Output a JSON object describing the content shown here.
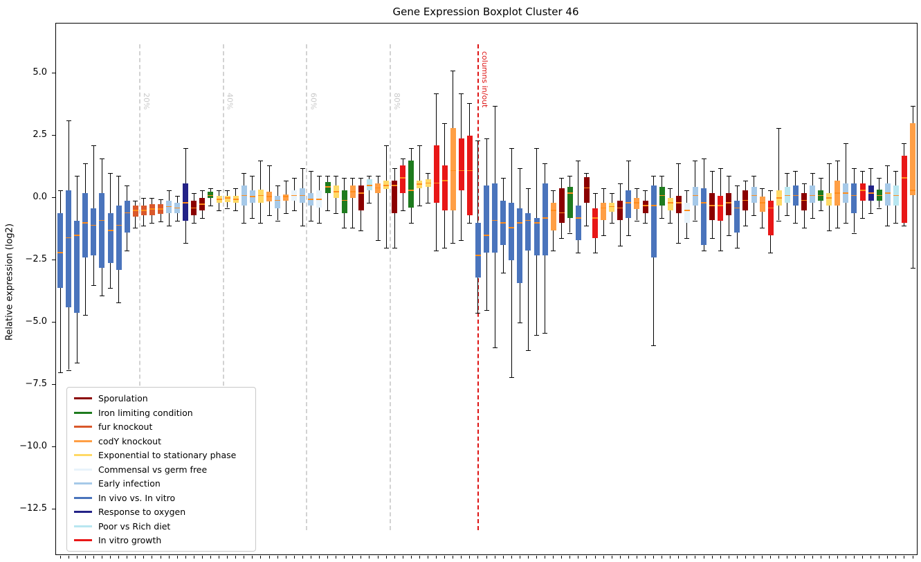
{
  "title": "Gene Expression Boxplot Cluster 46",
  "y_axis": {
    "label": "Relative expression (log2)",
    "ticks": [
      {
        "v": 5.0,
        "label": "5.0"
      },
      {
        "v": 2.5,
        "label": "2.5"
      },
      {
        "v": 0.0,
        "label": "0.0"
      },
      {
        "v": -2.5,
        "label": "−2.5"
      },
      {
        "v": -5.0,
        "label": "−5.0"
      },
      {
        "v": -7.5,
        "label": "−7.5"
      },
      {
        "v": -10.0,
        "label": "−10.0"
      },
      {
        "v": -12.5,
        "label": "−12.5"
      }
    ]
  },
  "chart_data": {
    "type": "boxplot",
    "title": "Gene Expression Boxplot Cluster 46",
    "xlabel": "",
    "ylabel": "Relative expression (log2)",
    "ylim": [
      -14.3,
      7.0
    ],
    "grid": false,
    "legend_position": "lower-left",
    "colors": {
      "percent_line": "#d2d2d2",
      "percent_label": "#c9c9c9",
      "boundary_line": "#dd1111",
      "boundary_label": "#dd1111",
      "median": "#ff8c1a",
      "whisker": "#000000"
    },
    "groups": [
      {
        "key": "spor",
        "label": "Sporulation",
        "color": "#8b0000"
      },
      {
        "key": "iron",
        "label": "Iron limiting condition",
        "color": "#1e7b1e"
      },
      {
        "key": "fur",
        "label": "fur knockout",
        "color": "#d9582b"
      },
      {
        "key": "cody",
        "label": "codY knockout",
        "color": "#ff9f45"
      },
      {
        "key": "exp",
        "label": "Exponential to stationary phase",
        "color": "#ffd966"
      },
      {
        "key": "comm",
        "label": "Commensal vs germ free",
        "color": "#e8f3fb"
      },
      {
        "key": "early",
        "label": "Early infection",
        "color": "#a6c9e8"
      },
      {
        "key": "invivo",
        "label": "In vivo vs. In vitro",
        "color": "#4a74bc"
      },
      {
        "key": "oxy",
        "label": "Response to oxygen",
        "color": "#232287"
      },
      {
        "key": "diet",
        "label": "Poor vs Rich diet",
        "color": "#b8e6f0"
      },
      {
        "key": "vitro",
        "label": "In vitro growth",
        "color": "#e81717"
      }
    ],
    "vlines": [
      {
        "label": "20%",
        "at_box": 10,
        "kind": "percent"
      },
      {
        "label": "40%",
        "at_box": 20,
        "kind": "percent"
      },
      {
        "label": "60%",
        "at_box": 30,
        "kind": "percent"
      },
      {
        "label": "80%",
        "at_box": 40,
        "kind": "percent"
      },
      {
        "label": "columns in/out",
        "at_box": 50.5,
        "kind": "boundary"
      }
    ],
    "boxes": [
      {
        "g": "invivo",
        "lo": -7.0,
        "q1": -3.6,
        "m": -2.2,
        "q3": -0.6,
        "hi": 0.3
      },
      {
        "g": "invivo",
        "lo": -6.9,
        "q1": -4.4,
        "m": -1.6,
        "q3": 0.3,
        "hi": 3.1
      },
      {
        "g": "invivo",
        "lo": -6.6,
        "q1": -4.6,
        "m": -1.5,
        "q3": -0.9,
        "hi": 0.9
      },
      {
        "g": "invivo",
        "lo": -4.7,
        "q1": -2.4,
        "m": -1.0,
        "q3": 0.2,
        "hi": 1.4
      },
      {
        "g": "invivo",
        "lo": -3.5,
        "q1": -2.3,
        "m": -1.1,
        "q3": -0.4,
        "hi": 2.1
      },
      {
        "g": "invivo",
        "lo": -3.9,
        "q1": -2.8,
        "m": -0.9,
        "q3": 0.2,
        "hi": 1.6
      },
      {
        "g": "invivo",
        "lo": -3.6,
        "q1": -2.6,
        "m": -1.3,
        "q3": -0.6,
        "hi": 1.0
      },
      {
        "g": "invivo",
        "lo": -4.2,
        "q1": -2.9,
        "m": -1.1,
        "q3": -0.3,
        "hi": 0.9
      },
      {
        "g": "invivo",
        "lo": -2.1,
        "q1": -1.4,
        "m": -0.6,
        "q3": -0.1,
        "hi": 0.5
      },
      {
        "g": "fur",
        "lo": -1.2,
        "q1": -0.75,
        "m": -0.5,
        "q3": -0.3,
        "hi": -0.1
      },
      {
        "g": "fur",
        "lo": -1.1,
        "q1": -0.7,
        "m": -0.5,
        "q3": -0.3,
        "hi": 0.0
      },
      {
        "g": "fur",
        "lo": -1.0,
        "q1": -0.7,
        "m": -0.45,
        "q3": -0.25,
        "hi": 0.0
      },
      {
        "g": "fur",
        "lo": -0.95,
        "q1": -0.65,
        "m": -0.45,
        "q3": -0.25,
        "hi": -0.05
      },
      {
        "g": "early",
        "lo": -1.1,
        "q1": -0.6,
        "m": -0.35,
        "q3": -0.1,
        "hi": 0.3
      },
      {
        "g": "early",
        "lo": -0.9,
        "q1": -0.6,
        "m": -0.4,
        "q3": -0.2,
        "hi": 0.1
      },
      {
        "g": "oxy",
        "lo": -1.8,
        "q1": -0.9,
        "m": -0.2,
        "q3": 0.6,
        "hi": 2.0
      },
      {
        "g": "spor",
        "lo": -1.0,
        "q1": -0.7,
        "m": -0.4,
        "q3": -0.1,
        "hi": 0.2
      },
      {
        "g": "spor",
        "lo": -0.8,
        "q1": -0.5,
        "m": -0.25,
        "q3": 0.0,
        "hi": 0.3
      },
      {
        "g": "iron",
        "lo": -0.3,
        "q1": 0.0,
        "m": 0.1,
        "q3": 0.25,
        "hi": 0.4
      },
      {
        "g": "exp",
        "lo": -0.5,
        "q1": -0.2,
        "m": -0.05,
        "q3": 0.1,
        "hi": 0.3
      },
      {
        "g": "exp",
        "lo": -0.4,
        "q1": -0.15,
        "m": 0.0,
        "q3": 0.1,
        "hi": 0.3
      },
      {
        "g": "exp",
        "lo": -0.5,
        "q1": -0.2,
        "m": -0.05,
        "q3": 0.1,
        "hi": 0.4
      },
      {
        "g": "early",
        "lo": -1.0,
        "q1": -0.3,
        "m": 0.1,
        "q3": 0.5,
        "hi": 1.0
      },
      {
        "g": "early",
        "lo": -0.8,
        "q1": -0.2,
        "m": 0.05,
        "q3": 0.3,
        "hi": 0.9
      },
      {
        "g": "exp",
        "lo": -1.0,
        "q1": -0.2,
        "m": 0.1,
        "q3": 0.35,
        "hi": 1.5
      },
      {
        "g": "cody",
        "lo": -0.7,
        "q1": -0.15,
        "m": 0.05,
        "q3": 0.25,
        "hi": 1.3
      },
      {
        "g": "early",
        "lo": -0.9,
        "q1": -0.4,
        "m": -0.1,
        "q3": 0.1,
        "hi": 0.5
      },
      {
        "g": "cody",
        "lo": -0.6,
        "q1": -0.1,
        "m": 0.05,
        "q3": 0.15,
        "hi": 0.7
      },
      {
        "g": "comm",
        "lo": -0.5,
        "q1": -0.1,
        "m": 0.1,
        "q3": 0.3,
        "hi": 0.8
      },
      {
        "g": "early",
        "lo": -1.1,
        "q1": -0.2,
        "m": 0.1,
        "q3": 0.4,
        "hi": 1.2
      },
      {
        "g": "early",
        "lo": -0.9,
        "q1": -0.3,
        "m": -0.05,
        "q3": 0.2,
        "hi": 1.1
      },
      {
        "g": "comm",
        "lo": -1.0,
        "q1": -0.4,
        "m": -0.05,
        "q3": 0.3,
        "hi": 0.9
      },
      {
        "g": "iron",
        "lo": -0.5,
        "q1": 0.2,
        "m": 0.45,
        "q3": 0.65,
        "hi": 0.9
      },
      {
        "g": "exp",
        "lo": -0.6,
        "q1": 0.0,
        "m": 0.25,
        "q3": 0.5,
        "hi": 0.9
      },
      {
        "g": "iron",
        "lo": -1.2,
        "q1": -0.6,
        "m": -0.1,
        "q3": 0.3,
        "hi": 0.8
      },
      {
        "g": "cody",
        "lo": -1.2,
        "q1": 0.0,
        "m": 0.25,
        "q3": 0.5,
        "hi": 0.8
      },
      {
        "g": "spor",
        "lo": -1.3,
        "q1": -0.5,
        "m": 0.2,
        "q3": 0.5,
        "hi": 0.8
      },
      {
        "g": "diet",
        "lo": -0.2,
        "q1": 0.3,
        "m": 0.5,
        "q3": 0.75,
        "hi": 0.9
      },
      {
        "g": "cody",
        "lo": -1.7,
        "q1": 0.2,
        "m": 0.4,
        "q3": 0.6,
        "hi": 0.9
      },
      {
        "g": "exp",
        "lo": -2.0,
        "q1": 0.35,
        "m": 0.5,
        "q3": 0.7,
        "hi": 2.1
      },
      {
        "g": "spor",
        "lo": -2.0,
        "q1": -0.6,
        "m": 0.5,
        "q3": 0.7,
        "hi": 1.2
      },
      {
        "g": "vitro",
        "lo": -0.5,
        "q1": 0.2,
        "m": 0.8,
        "q3": 1.3,
        "hi": 1.6
      },
      {
        "g": "iron",
        "lo": -1.0,
        "q1": -0.4,
        "m": 0.3,
        "q3": 1.5,
        "hi": 2.0
      },
      {
        "g": "exp",
        "lo": -0.3,
        "q1": 0.4,
        "m": 0.55,
        "q3": 0.7,
        "hi": 2.1
      },
      {
        "g": "exp",
        "lo": -0.2,
        "q1": 0.45,
        "m": 0.6,
        "q3": 0.75,
        "hi": 1.0
      },
      {
        "g": "vitro",
        "lo": -2.1,
        "q1": -0.2,
        "m": 0.6,
        "q3": 2.1,
        "hi": 4.2
      },
      {
        "g": "vitro",
        "lo": -2.0,
        "q1": -0.5,
        "m": 0.7,
        "q3": 1.3,
        "hi": 3.0
      },
      {
        "g": "cody",
        "lo": -1.8,
        "q1": -0.5,
        "m": 1.1,
        "q3": 2.8,
        "hi": 5.1
      },
      {
        "g": "vitro",
        "lo": -1.7,
        "q1": 0.3,
        "m": 1.1,
        "q3": 2.4,
        "hi": 4.2
      },
      {
        "g": "vitro",
        "lo": -1.0,
        "q1": -0.7,
        "m": 1.1,
        "q3": 2.5,
        "hi": 3.8
      },
      {
        "g": "invivo",
        "lo": -4.6,
        "q1": -3.2,
        "m": -2.3,
        "q3": -1.0,
        "hi": 2.3
      },
      {
        "g": "invivo",
        "lo": -4.5,
        "q1": -2.2,
        "m": -1.5,
        "q3": 0.5,
        "hi": 2.4
      },
      {
        "g": "invivo",
        "lo": -6.0,
        "q1": -2.2,
        "m": -0.9,
        "q3": 0.6,
        "hi": 3.7
      },
      {
        "g": "invivo",
        "lo": -3.0,
        "q1": -1.9,
        "m": -1.0,
        "q3": -0.1,
        "hi": 0.8
      },
      {
        "g": "invivo",
        "lo": -7.2,
        "q1": -2.5,
        "m": -1.2,
        "q3": -0.2,
        "hi": 2.0
      },
      {
        "g": "invivo",
        "lo": -5.0,
        "q1": -3.4,
        "m": -1.0,
        "q3": -0.4,
        "hi": 1.2
      },
      {
        "g": "invivo",
        "lo": -6.1,
        "q1": -2.1,
        "m": -0.9,
        "q3": -0.6,
        "hi": 0.4
      },
      {
        "g": "invivo",
        "lo": -5.5,
        "q1": -2.3,
        "m": -1.0,
        "q3": -0.8,
        "hi": 2.0
      },
      {
        "g": "invivo",
        "lo": -5.4,
        "q1": -2.3,
        "m": -0.8,
        "q3": 0.6,
        "hi": 1.4
      },
      {
        "g": "cody",
        "lo": -2.1,
        "q1": -1.3,
        "m": -0.5,
        "q3": -0.2,
        "hi": 0.3
      },
      {
        "g": "spor",
        "lo": -1.6,
        "q1": -1.0,
        "m": -0.6,
        "q3": 0.4,
        "hi": 0.8
      },
      {
        "g": "iron",
        "lo": -1.4,
        "q1": -0.8,
        "m": 0.2,
        "q3": 0.45,
        "hi": 0.9
      },
      {
        "g": "invivo",
        "lo": -2.2,
        "q1": -1.7,
        "m": -0.8,
        "q3": -0.3,
        "hi": 1.5
      },
      {
        "g": "spor",
        "lo": -1.1,
        "q1": -0.2,
        "m": 0.4,
        "q3": 0.85,
        "hi": 1.0
      },
      {
        "g": "vitro",
        "lo": -2.2,
        "q1": -1.6,
        "m": -0.8,
        "q3": -0.4,
        "hi": 0.2
      },
      {
        "g": "cody",
        "lo": -1.5,
        "q1": -0.9,
        "m": -0.4,
        "q3": -0.2,
        "hi": 0.4
      },
      {
        "g": "exp",
        "lo": -1.0,
        "q1": -0.55,
        "m": -0.35,
        "q3": -0.2,
        "hi": 0.2
      },
      {
        "g": "spor",
        "lo": -1.9,
        "q1": -0.9,
        "m": -0.4,
        "q3": -0.1,
        "hi": 0.6
      },
      {
        "g": "invivo",
        "lo": -1.5,
        "q1": -0.8,
        "m": -0.2,
        "q3": 0.3,
        "hi": 1.5
      },
      {
        "g": "cody",
        "lo": -0.9,
        "q1": -0.45,
        "m": -0.2,
        "q3": 0.0,
        "hi": 0.4
      },
      {
        "g": "spor",
        "lo": -1.0,
        "q1": -0.6,
        "m": -0.3,
        "q3": -0.1,
        "hi": 0.3
      },
      {
        "g": "invivo",
        "lo": -5.9,
        "q1": -2.4,
        "m": -0.3,
        "q3": 0.5,
        "hi": 0.9
      },
      {
        "g": "iron",
        "lo": -0.8,
        "q1": -0.3,
        "m": 0.1,
        "q3": 0.45,
        "hi": 0.9
      },
      {
        "g": "exp",
        "lo": -1.0,
        "q1": -0.5,
        "m": -0.2,
        "q3": 0.0,
        "hi": 0.4
      },
      {
        "g": "spor",
        "lo": -1.8,
        "q1": -0.6,
        "m": -0.2,
        "q3": 0.1,
        "hi": 1.4
      },
      {
        "g": "comm",
        "lo": -1.6,
        "q1": -1.0,
        "m": -0.5,
        "q3": -0.2,
        "hi": 0.3
      },
      {
        "g": "early",
        "lo": -0.9,
        "q1": -0.3,
        "m": 0.1,
        "q3": 0.45,
        "hi": 1.5
      },
      {
        "g": "invivo",
        "lo": -2.1,
        "q1": -1.9,
        "m": -0.2,
        "q3": 0.4,
        "hi": 1.6
      },
      {
        "g": "spor",
        "lo": -1.6,
        "q1": -0.9,
        "m": -0.3,
        "q3": 0.2,
        "hi": 1.1
      },
      {
        "g": "vitro",
        "lo": -2.1,
        "q1": -0.9,
        "m": -0.3,
        "q3": 0.1,
        "hi": 1.2
      },
      {
        "g": "spor",
        "lo": -1.5,
        "q1": -0.7,
        "m": -0.2,
        "q3": 0.2,
        "hi": 0.9
      },
      {
        "g": "invivo",
        "lo": -2.0,
        "q1": -1.4,
        "m": -0.4,
        "q3": -0.1,
        "hi": 0.5
      },
      {
        "g": "spor",
        "lo": -1.1,
        "q1": -0.5,
        "m": -0.1,
        "q3": 0.3,
        "hi": 0.7
      },
      {
        "g": "early",
        "lo": -0.7,
        "q1": -0.2,
        "m": 0.1,
        "q3": 0.45,
        "hi": 0.9
      },
      {
        "g": "cody",
        "lo": -1.2,
        "q1": -0.55,
        "m": -0.2,
        "q3": 0.05,
        "hi": 0.4
      },
      {
        "g": "vitro",
        "lo": -2.2,
        "q1": -1.5,
        "m": -0.4,
        "q3": -0.1,
        "hi": 0.3
      },
      {
        "g": "exp",
        "lo": -0.9,
        "q1": -0.3,
        "m": 0.0,
        "q3": 0.3,
        "hi": 2.8
      },
      {
        "g": "diet",
        "lo": -0.7,
        "q1": -0.2,
        "m": 0.1,
        "q3": 0.45,
        "hi": 1.0
      },
      {
        "g": "invivo",
        "lo": -1.0,
        "q1": -0.3,
        "m": 0.1,
        "q3": 0.5,
        "hi": 1.1
      },
      {
        "g": "spor",
        "lo": -1.2,
        "q1": -0.5,
        "m": -0.1,
        "q3": 0.2,
        "hi": 0.6
      },
      {
        "g": "early",
        "lo": -0.8,
        "q1": -0.2,
        "m": 0.1,
        "q3": 0.5,
        "hi": 1.0
      },
      {
        "g": "iron",
        "lo": -0.5,
        "q1": -0.1,
        "m": 0.1,
        "q3": 0.3,
        "hi": 0.8
      },
      {
        "g": "exp",
        "lo": -1.3,
        "q1": -0.3,
        "m": 0.0,
        "q3": 0.2,
        "hi": 1.4
      },
      {
        "g": "cody",
        "lo": -1.2,
        "q1": -0.3,
        "m": 0.2,
        "q3": 0.7,
        "hi": 1.5
      },
      {
        "g": "early",
        "lo": -1.0,
        "q1": -0.2,
        "m": 0.2,
        "q3": 0.6,
        "hi": 2.2
      },
      {
        "g": "invivo",
        "lo": -1.4,
        "q1": -0.6,
        "m": 0.1,
        "q3": 0.6,
        "hi": 1.2
      },
      {
        "g": "vitro",
        "lo": -0.8,
        "q1": -0.1,
        "m": 0.3,
        "q3": 0.6,
        "hi": 1.1
      },
      {
        "g": "oxy",
        "lo": -0.6,
        "q1": -0.1,
        "m": 0.2,
        "q3": 0.5,
        "hi": 1.2
      },
      {
        "g": "iron",
        "lo": -0.4,
        "q1": -0.1,
        "m": 0.1,
        "q3": 0.35,
        "hi": 0.8
      },
      {
        "g": "early",
        "lo": -1.1,
        "q1": -0.3,
        "m": 0.2,
        "q3": 0.6,
        "hi": 1.3
      },
      {
        "g": "diet",
        "lo": -1.0,
        "q1": -0.3,
        "m": 0.1,
        "q3": 0.5,
        "hi": 1.1
      },
      {
        "g": "vitro",
        "lo": -1.1,
        "q1": -1.0,
        "m": 0.8,
        "q3": 1.7,
        "hi": 2.2
      },
      {
        "g": "cody",
        "lo": -2.8,
        "q1": 0.1,
        "m": 0.3,
        "q3": 3.0,
        "hi": 3.7
      }
    ]
  }
}
